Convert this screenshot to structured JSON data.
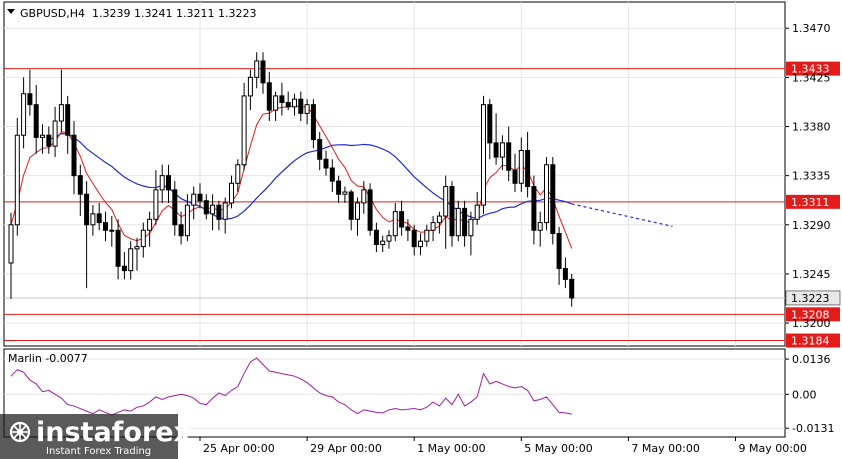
{
  "header": {
    "symbol": "GBPUSD,H4",
    "ohlc": "1.3239 1.3241 1.3211 1.3223"
  },
  "indicator": {
    "name_value": "Marlin -0.0077"
  },
  "watermark": {
    "brand": "instaforex",
    "tagline": "Instant Forex Trading"
  },
  "colors": {
    "background": "#ffffff",
    "grid": "#e6e6e6",
    "candle": "#000000",
    "ma_fast": "#e21b1b",
    "ma_slow": "#1f2bd6",
    "oscillator": "#a020a0",
    "level_line": "#e21b1b",
    "current_price_tag": "#e8e8e8"
  },
  "chart_data": [
    {
      "type": "candlestick",
      "title": "GBPUSD,H4",
      "y_ticks": [
        "1.3470",
        "1.3425",
        "1.3380",
        "1.3335",
        "1.3290",
        "1.3245",
        "1.3200"
      ],
      "ylim": [
        1.3179,
        1.3494
      ],
      "x_tick_labels": [
        "25 Apr 00:00",
        "29 Apr 00:00",
        "1 May 00:00",
        "5 May 00:00",
        "7 May 00:00",
        "9 May 00:00"
      ],
      "x_tick_index": [
        30,
        47,
        64,
        81,
        98,
        115
      ],
      "levels": [
        {
          "label": "1.3433",
          "value": 1.3433
        },
        {
          "label": "1.3311",
          "value": 1.3311
        },
        {
          "label": "1.3208",
          "value": 1.3208
        },
        {
          "label": "1.3184",
          "value": 1.3184
        }
      ],
      "current_price": {
        "label": "1.3223",
        "value": 1.3223
      },
      "candles": [
        [
          1.3255,
          1.3301,
          1.3222,
          1.329
        ],
        [
          1.329,
          1.3388,
          1.328,
          1.3372
        ],
        [
          1.3372,
          1.3425,
          1.336,
          1.341
        ],
        [
          1.341,
          1.3432,
          1.339,
          1.34
        ],
        [
          1.34,
          1.3418,
          1.3355,
          1.337
        ],
        [
          1.337,
          1.3382,
          1.3355,
          1.3372
        ],
        [
          1.3372,
          1.338,
          1.3355,
          1.3362
        ],
        [
          1.3362,
          1.3398,
          1.3352,
          1.3385
        ],
        [
          1.3385,
          1.3432,
          1.3375,
          1.34
        ],
        [
          1.34,
          1.3408,
          1.3355,
          1.3372
        ],
        [
          1.3372,
          1.3385,
          1.3318,
          1.3335
        ],
        [
          1.3335,
          1.3345,
          1.3298,
          1.3318
        ],
        [
          1.3318,
          1.333,
          1.3232,
          1.329
        ],
        [
          1.329,
          1.3308,
          1.328,
          1.33
        ],
        [
          1.33,
          1.331,
          1.3285,
          1.3292
        ],
        [
          1.3292,
          1.3302,
          1.3275,
          1.3285
        ],
        [
          1.3285,
          1.3298,
          1.327,
          1.3285
        ],
        [
          1.3285,
          1.3295,
          1.324,
          1.3252
        ],
        [
          1.3252,
          1.3265,
          1.324,
          1.3248
        ],
        [
          1.3248,
          1.3275,
          1.324,
          1.3268
        ],
        [
          1.3268,
          1.3278,
          1.3248,
          1.327
        ],
        [
          1.327,
          1.3292,
          1.326,
          1.3285
        ],
        [
          1.3285,
          1.3302,
          1.327,
          1.3295
        ],
        [
          1.3295,
          1.334,
          1.329,
          1.3322
        ],
        [
          1.3322,
          1.3345,
          1.331,
          1.3335
        ],
        [
          1.3335,
          1.3345,
          1.331,
          1.3322
        ],
        [
          1.3322,
          1.333,
          1.328,
          1.329
        ],
        [
          1.329,
          1.3302,
          1.3272,
          1.328
        ],
        [
          1.328,
          1.3318,
          1.3275,
          1.3308
        ],
        [
          1.3308,
          1.3325,
          1.3295,
          1.3318
        ],
        [
          1.3318,
          1.3328,
          1.3305,
          1.3312
        ],
        [
          1.3312,
          1.3318,
          1.3295,
          1.33
        ],
        [
          1.33,
          1.3318,
          1.3285,
          1.3308
        ],
        [
          1.3308,
          1.3312,
          1.3285,
          1.3295
        ],
        [
          1.3295,
          1.3315,
          1.3282,
          1.331
        ],
        [
          1.331,
          1.3335,
          1.3305,
          1.3328
        ],
        [
          1.3328,
          1.335,
          1.332,
          1.3345
        ],
        [
          1.3345,
          1.342,
          1.334,
          1.3408
        ],
        [
          1.3408,
          1.3432,
          1.3395,
          1.3425
        ],
        [
          1.3425,
          1.3448,
          1.3415,
          1.344
        ],
        [
          1.344,
          1.3448,
          1.341,
          1.342
        ],
        [
          1.342,
          1.343,
          1.3385,
          1.3395
        ],
        [
          1.3395,
          1.3412,
          1.3385,
          1.3408
        ],
        [
          1.3408,
          1.342,
          1.339,
          1.3402
        ],
        [
          1.3402,
          1.3412,
          1.3395,
          1.3398
        ],
        [
          1.3398,
          1.341,
          1.339,
          1.3405
        ],
        [
          1.3405,
          1.3412,
          1.3385,
          1.3392
        ],
        [
          1.3392,
          1.3405,
          1.3382,
          1.34
        ],
        [
          1.34,
          1.3405,
          1.336,
          1.3368
        ],
        [
          1.3368,
          1.3375,
          1.334,
          1.335
        ],
        [
          1.335,
          1.3358,
          1.3335,
          1.3342
        ],
        [
          1.3342,
          1.335,
          1.332,
          1.333
        ],
        [
          1.333,
          1.3335,
          1.331,
          1.3318
        ],
        [
          1.3318,
          1.3325,
          1.331,
          1.332
        ],
        [
          1.332,
          1.3322,
          1.3285,
          1.3295
        ],
        [
          1.3295,
          1.3315,
          1.328,
          1.331
        ],
        [
          1.331,
          1.333,
          1.33,
          1.3322
        ],
        [
          1.3322,
          1.3328,
          1.328,
          1.3285
        ],
        [
          1.3285,
          1.3292,
          1.3265,
          1.3272
        ],
        [
          1.3272,
          1.328,
          1.3265,
          1.3275
        ],
        [
          1.3275,
          1.3285,
          1.3268,
          1.328
        ],
        [
          1.328,
          1.331,
          1.3275,
          1.3302
        ],
        [
          1.3302,
          1.3312,
          1.328,
          1.3288
        ],
        [
          1.3288,
          1.3295,
          1.3275,
          1.3285
        ],
        [
          1.3285,
          1.329,
          1.3262,
          1.327
        ],
        [
          1.327,
          1.3282,
          1.3262,
          1.3275
        ],
        [
          1.3275,
          1.329,
          1.327,
          1.3285
        ],
        [
          1.3285,
          1.3298,
          1.3275,
          1.3292
        ],
        [
          1.3292,
          1.3302,
          1.3282,
          1.3298
        ],
        [
          1.3298,
          1.3335,
          1.3268,
          1.3325
        ],
        [
          1.3325,
          1.333,
          1.327,
          1.328
        ],
        [
          1.328,
          1.3312,
          1.3275,
          1.3305
        ],
        [
          1.3305,
          1.3312,
          1.327,
          1.328
        ],
        [
          1.328,
          1.3302,
          1.3262,
          1.3295
        ],
        [
          1.3295,
          1.332,
          1.329,
          1.3308
        ],
        [
          1.3308,
          1.3408,
          1.33,
          1.34
        ],
        [
          1.34,
          1.3405,
          1.335,
          1.3365
        ],
        [
          1.3365,
          1.3392,
          1.3345,
          1.3352
        ],
        [
          1.3352,
          1.3372,
          1.334,
          1.3365
        ],
        [
          1.3365,
          1.338,
          1.333,
          1.334
        ],
        [
          1.334,
          1.3355,
          1.332,
          1.3328
        ],
        [
          1.3328,
          1.337,
          1.332,
          1.3358
        ],
        [
          1.3358,
          1.3375,
          1.3315,
          1.3325
        ],
        [
          1.3325,
          1.3335,
          1.3272,
          1.3285
        ],
        [
          1.3285,
          1.3302,
          1.327,
          1.3292
        ],
        [
          1.3292,
          1.3352,
          1.3285,
          1.3345
        ],
        [
          1.3345,
          1.3352,
          1.3272,
          1.3282
        ],
        [
          1.3282,
          1.3288,
          1.3235,
          1.325
        ],
        [
          1.325,
          1.326,
          1.3232,
          1.324
        ],
        [
          1.324,
          1.3245,
          1.3215,
          1.3223
        ]
      ]
    },
    {
      "type": "line",
      "title": "Marlin -0.0077",
      "y_ticks": [
        "0.0136",
        "0.00",
        "-0.0131"
      ],
      "ylim": [
        -0.0165,
        0.0175
      ],
      "values": [
        0.007,
        0.0095,
        0.0085,
        0.0055,
        0.004,
        0.001,
        0.0015,
        0.0,
        -0.0015,
        -0.004,
        -0.0045,
        -0.0055,
        -0.0065,
        -0.0075,
        -0.006,
        -0.007,
        -0.008,
        -0.007,
        -0.006,
        -0.0065,
        -0.005,
        -0.0045,
        -0.003,
        -0.001,
        -0.002,
        -0.001,
        -0.0005,
        0.0,
        -0.0005,
        -0.0015,
        -0.0035,
        -0.004,
        -0.0015,
        0.0005,
        -0.0005,
        0.0015,
        0.003,
        0.008,
        0.0125,
        0.014,
        0.0115,
        0.009,
        0.0085,
        0.008,
        0.0075,
        0.007,
        0.006,
        0.0045,
        0.0025,
        0.0005,
        -0.0005,
        -0.001,
        -0.003,
        -0.004,
        -0.006,
        -0.0075,
        -0.006,
        -0.0065,
        -0.007,
        -0.0072,
        -0.006,
        -0.0055,
        -0.006,
        -0.0058,
        -0.0055,
        -0.006,
        -0.005,
        -0.003,
        -0.0045,
        -0.0015,
        -0.004,
        0.0,
        -0.0045,
        -0.003,
        -0.001,
        0.008,
        0.004,
        0.005,
        0.004,
        0.003,
        0.0025,
        0.003,
        0.0015,
        -0.0025,
        -0.002,
        -0.001,
        -0.004,
        -0.007,
        -0.0072,
        -0.0077
      ]
    }
  ]
}
